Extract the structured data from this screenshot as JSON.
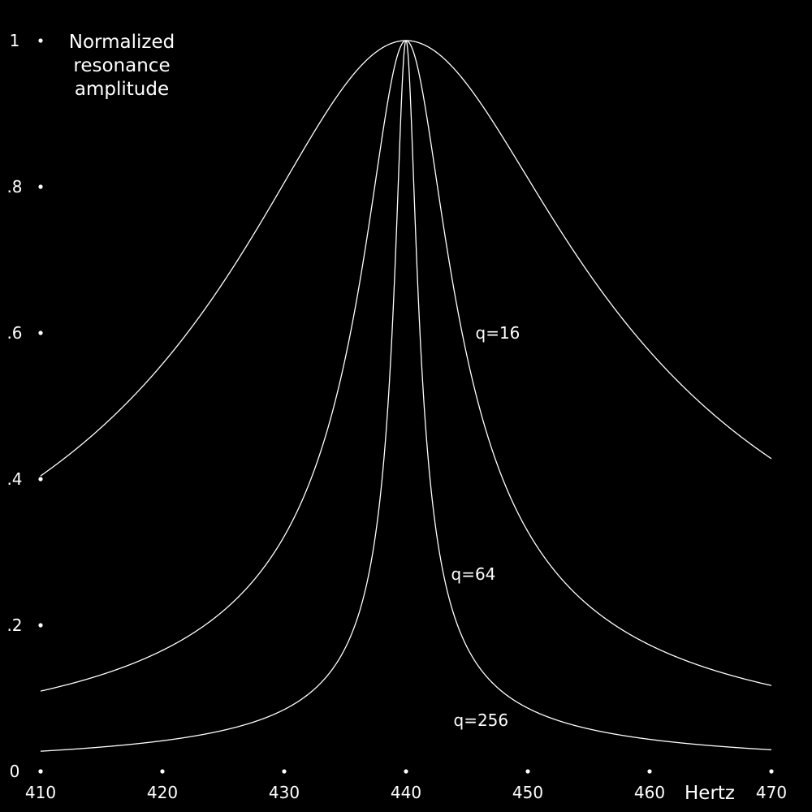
{
  "chart_data": {
    "type": "line",
    "title": "",
    "ylabel": "Normalized resonance amplitude",
    "ylabel_lines": [
      "Normalized",
      "resonance",
      "amplitude"
    ],
    "xlabel": "Hertz",
    "xlim": [
      410,
      470
    ],
    "ylim": [
      0,
      1
    ],
    "x_ticks": [
      410,
      420,
      430,
      440,
      450,
      460,
      470
    ],
    "x_tick_labels": [
      "410",
      "420",
      "430",
      "440",
      "450",
      "460",
      "470"
    ],
    "y_ticks": [
      0,
      0.2,
      0.4,
      0.6,
      0.8,
      1
    ],
    "y_tick_labels": [
      "0",
      ".2",
      ".4",
      ".6",
      ".8",
      "1"
    ],
    "grid": false,
    "center_frequency": 440,
    "series": [
      {
        "name": "q=16",
        "q": 16,
        "label_at": [
          445.7,
          0.6
        ]
      },
      {
        "name": "q=64",
        "q": 64,
        "label_at": [
          443.7,
          0.27
        ]
      },
      {
        "name": "q=256",
        "q": 256,
        "label_at": [
          443.9,
          0.07
        ]
      }
    ],
    "colors": {
      "background": "#000000",
      "foreground": "#ffffff"
    }
  }
}
